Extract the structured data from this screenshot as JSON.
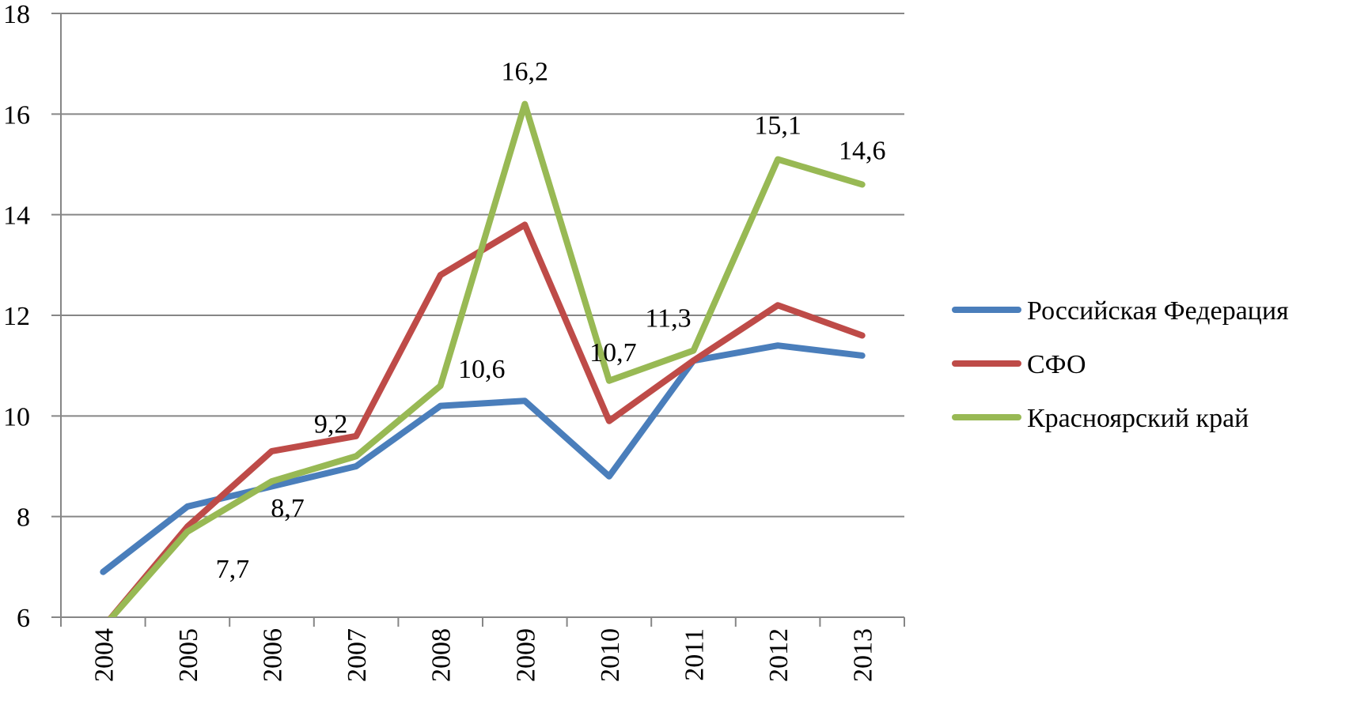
{
  "chart_data": {
    "type": "line",
    "categories": [
      "2004",
      "2005",
      "2006",
      "2007",
      "2008",
      "2009",
      "2010",
      "2011",
      "2012",
      "2013"
    ],
    "ylim": [
      6,
      18
    ],
    "y_ticks": [
      "6",
      "8",
      "10",
      "12",
      "14",
      "16",
      "18"
    ],
    "grid": true,
    "legend_position": "right",
    "series": [
      {
        "name": "Российская Федерация",
        "color": "#4a7ebb",
        "values": [
          6.9,
          8.2,
          8.6,
          9.0,
          10.2,
          10.3,
          8.8,
          11.1,
          11.4,
          11.2
        ]
      },
      {
        "name": "СФО",
        "color": "#be4b48",
        "values": [
          5.8,
          7.8,
          9.3,
          9.6,
          12.8,
          13.8,
          9.9,
          11.1,
          12.2,
          11.6
        ]
      },
      {
        "name": "Красноярский край",
        "color": "#98b954",
        "values": [
          5.8,
          7.7,
          8.7,
          9.2,
          10.6,
          16.2,
          10.7,
          11.3,
          15.1,
          14.6
        ]
      }
    ],
    "data_labels": [
      {
        "series": 2,
        "index": 1,
        "text": "7,7"
      },
      {
        "series": 2,
        "index": 2,
        "text": "8,7"
      },
      {
        "series": 2,
        "index": 3,
        "text": "9,2"
      },
      {
        "series": 2,
        "index": 4,
        "text": "10,6"
      },
      {
        "series": 2,
        "index": 5,
        "text": "16,2"
      },
      {
        "series": 2,
        "index": 6,
        "text": "10,7"
      },
      {
        "series": 2,
        "index": 7,
        "text": "11,3"
      },
      {
        "series": 2,
        "index": 8,
        "text": "15,1"
      },
      {
        "series": 2,
        "index": 9,
        "text": "14,6"
      }
    ]
  }
}
